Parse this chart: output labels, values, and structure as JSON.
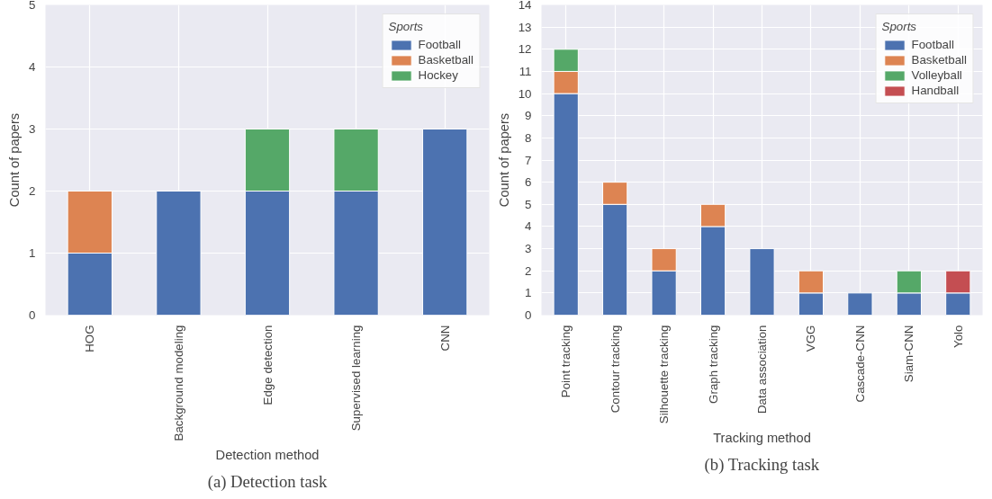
{
  "chart_data": [
    {
      "type": "bar",
      "stacked": true,
      "xlabel": "Detection method",
      "ylabel": "Count of papers",
      "legend_title": "Sports",
      "legend": "top right",
      "grid": true,
      "categories": [
        "HOG",
        "Background modeling",
        "Edge detection",
        "Supervised learning",
        "CNN"
      ],
      "ylim": [
        0,
        5
      ],
      "yticks": [
        0,
        1,
        2,
        3,
        4,
        5
      ],
      "series": [
        {
          "name": "Football",
          "color": "#4c72b0",
          "values": [
            1,
            2,
            2,
            2,
            3
          ]
        },
        {
          "name": "Basketball",
          "color": "#dd8452",
          "values": [
            1,
            null,
            null,
            null,
            null
          ]
        },
        {
          "name": "Hockey",
          "color": "#55a868",
          "values": [
            null,
            null,
            1,
            1,
            null
          ]
        }
      ],
      "annotations": [
        "(a) Detection task"
      ]
    },
    {
      "type": "bar",
      "stacked": true,
      "xlabel": "Tracking method",
      "ylabel": "Count of papers",
      "legend_title": "Sports",
      "legend": "top right",
      "grid": true,
      "categories": [
        "Point tracking",
        "Contour tracking",
        "Silhouette tracking",
        "Graph tracking",
        "Data association",
        "VGG",
        "Cascade-CNN",
        "Siam-CNN",
        "Yolo"
      ],
      "ylim": [
        0,
        14
      ],
      "yticks": [
        0,
        1,
        2,
        3,
        4,
        5,
        6,
        7,
        8,
        9,
        10,
        11,
        12,
        13,
        14
      ],
      "series": [
        {
          "name": "Football",
          "color": "#4c72b0",
          "values": [
            10,
            5,
            2,
            4,
            3,
            1,
            1,
            1,
            1
          ]
        },
        {
          "name": "Basketball",
          "color": "#dd8452",
          "values": [
            1,
            1,
            1,
            1,
            null,
            1,
            null,
            null,
            null
          ]
        },
        {
          "name": "Volleyball",
          "color": "#55a868",
          "values": [
            1,
            null,
            null,
            null,
            null,
            null,
            null,
            1,
            null
          ]
        },
        {
          "name": "Handball",
          "color": "#c44e52",
          "values": [
            null,
            null,
            null,
            null,
            null,
            null,
            null,
            null,
            1
          ]
        }
      ],
      "annotations": [
        "(b) Tracking task"
      ]
    }
  ]
}
